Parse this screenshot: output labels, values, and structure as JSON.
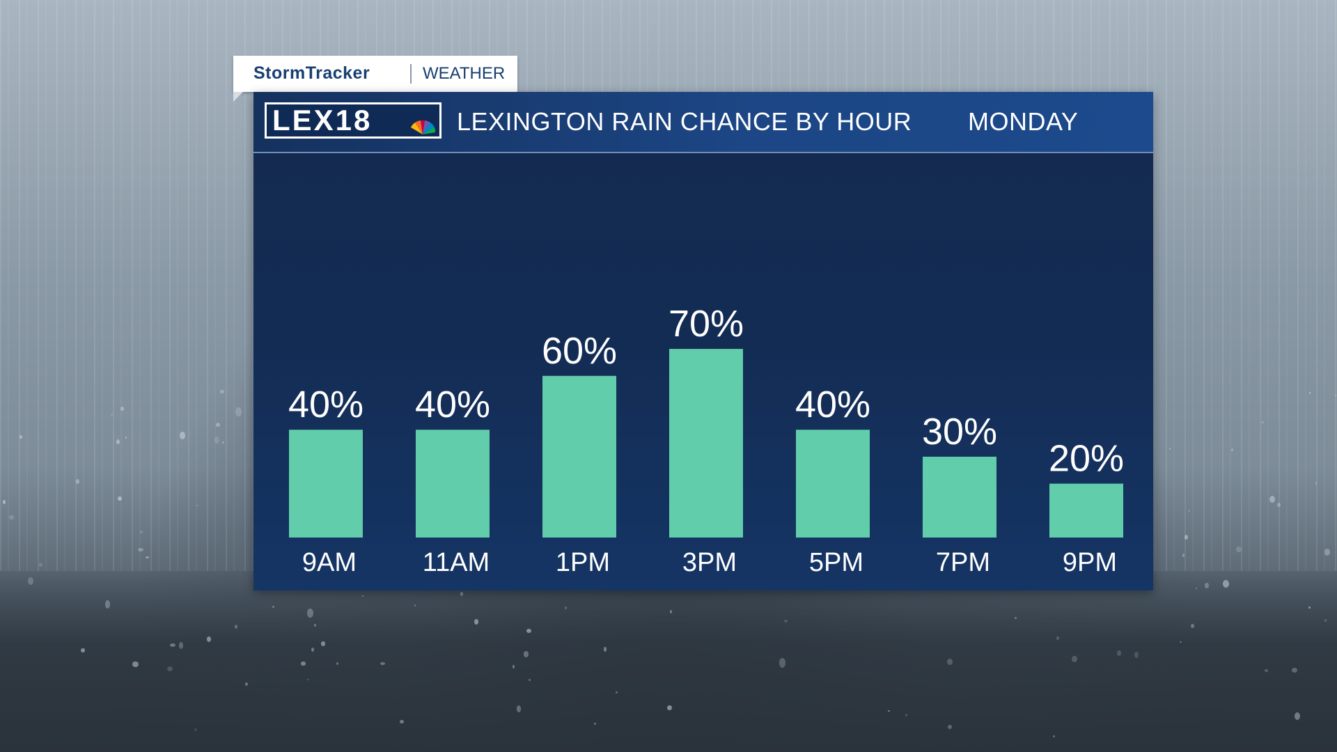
{
  "brand": {
    "storm_label": "StormTracker",
    "weather_label": "WEATHER"
  },
  "header": {
    "logo_text": "LEX18",
    "title": "LEXINGTON RAIN CHANCE BY HOUR",
    "day": "MONDAY"
  },
  "colors": {
    "bar": "#62cdaa",
    "label": "#ffffff"
  },
  "chart_data": {
    "type": "bar",
    "title": "LEXINGTON RAIN CHANCE BY HOUR",
    "subtitle": "MONDAY",
    "categories": [
      "9AM",
      "11AM",
      "1PM",
      "3PM",
      "5PM",
      "7PM",
      "9PM"
    ],
    "values": [
      40,
      40,
      60,
      70,
      40,
      30,
      20
    ],
    "value_labels": [
      "40%",
      "40%",
      "60%",
      "70%",
      "40%",
      "30%",
      "20%"
    ],
    "unit": "%",
    "ylim": [
      0,
      100
    ],
    "grid": false,
    "xlabel": "",
    "ylabel": ""
  }
}
